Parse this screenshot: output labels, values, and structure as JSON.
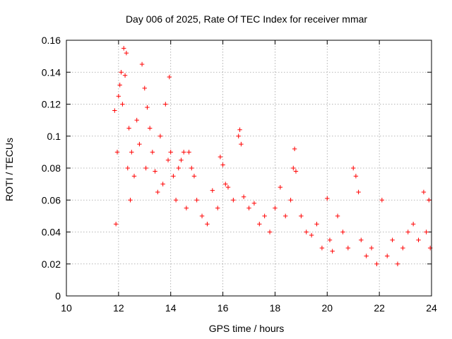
{
  "chart_data": {
    "type": "scatter",
    "title": "Day 006 of 2025, Rate Of TEC Index for receiver mmar",
    "xlabel": "GPS time / hours",
    "ylabel": "ROTI / TECUs",
    "xlim": [
      10,
      24
    ],
    "ylim": [
      0,
      0.16
    ],
    "xticks": [
      "10",
      "12",
      "14",
      "16",
      "18",
      "20",
      "22",
      "24"
    ],
    "yticks": [
      "0",
      "0.02",
      "0.04",
      "0.06",
      "0.08",
      "0.1",
      "0.12",
      "0.14",
      "0.16"
    ],
    "grid": true,
    "marker": "+",
    "color": "#ff0000",
    "series": [
      {
        "name": "ROTI",
        "x": [
          11.85,
          11.9,
          11.95,
          12.0,
          12.05,
          12.1,
          12.15,
          12.2,
          12.25,
          12.3,
          12.35,
          12.4,
          12.45,
          12.5,
          12.6,
          12.7,
          12.8,
          12.9,
          13.0,
          13.05,
          13.1,
          13.2,
          13.3,
          13.4,
          13.5,
          13.6,
          13.7,
          13.8,
          13.9,
          13.95,
          14.0,
          14.1,
          14.2,
          14.3,
          14.4,
          14.5,
          14.6,
          14.7,
          14.8,
          14.9,
          15.0,
          15.2,
          15.4,
          15.6,
          15.8,
          15.9,
          16.0,
          16.1,
          16.2,
          16.4,
          16.6,
          16.65,
          16.7,
          16.8,
          17.0,
          17.2,
          17.4,
          17.6,
          17.8,
          18.0,
          18.2,
          18.4,
          18.6,
          18.7,
          18.75,
          18.8,
          19.0,
          19.2,
          19.4,
          19.6,
          19.8,
          20.0,
          20.1,
          20.2,
          20.4,
          20.6,
          20.8,
          21.0,
          21.1,
          21.2,
          21.3,
          21.5,
          21.7,
          21.9,
          22.1,
          22.3,
          22.5,
          22.7,
          22.9,
          23.1,
          23.3,
          23.5,
          23.7,
          23.8,
          23.9,
          23.95
        ],
        "y": [
          0.116,
          0.045,
          0.09,
          0.125,
          0.132,
          0.14,
          0.12,
          0.155,
          0.138,
          0.152,
          0.08,
          0.105,
          0.06,
          0.09,
          0.075,
          0.11,
          0.095,
          0.145,
          0.13,
          0.08,
          0.118,
          0.105,
          0.09,
          0.078,
          0.065,
          0.1,
          0.07,
          0.12,
          0.085,
          0.137,
          0.09,
          0.075,
          0.06,
          0.08,
          0.085,
          0.09,
          0.055,
          0.09,
          0.08,
          0.075,
          0.06,
          0.05,
          0.045,
          0.066,
          0.055,
          0.087,
          0.082,
          0.07,
          0.068,
          0.06,
          0.1,
          0.104,
          0.095,
          0.062,
          0.055,
          0.058,
          0.045,
          0.05,
          0.04,
          0.055,
          0.068,
          0.05,
          0.06,
          0.08,
          0.092,
          0.078,
          0.05,
          0.04,
          0.038,
          0.045,
          0.03,
          0.061,
          0.035,
          0.028,
          0.05,
          0.04,
          0.03,
          0.08,
          0.075,
          0.065,
          0.035,
          0.025,
          0.03,
          0.02,
          0.06,
          0.025,
          0.035,
          0.02,
          0.03,
          0.04,
          0.045,
          0.035,
          0.065,
          0.04,
          0.06,
          0.03
        ]
      }
    ]
  }
}
